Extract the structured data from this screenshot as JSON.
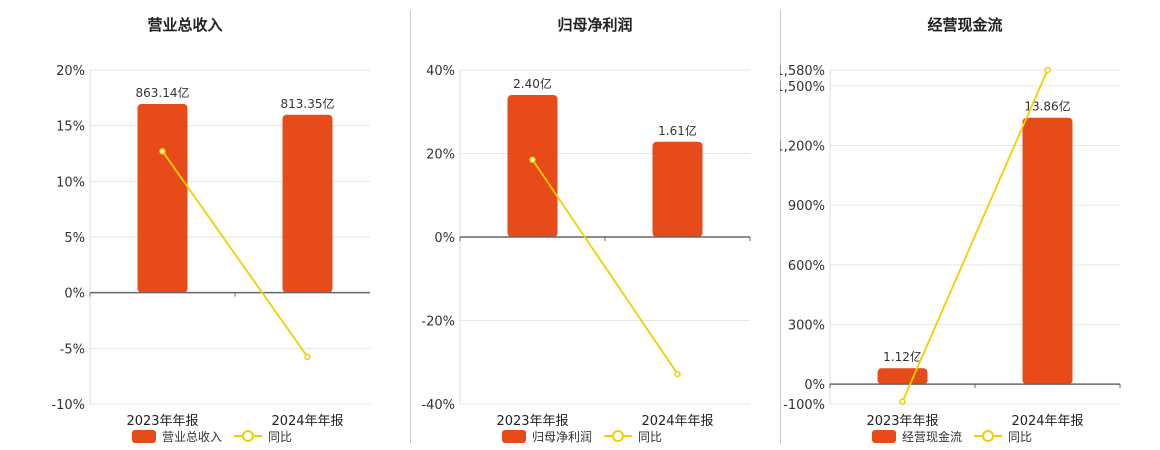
{
  "colors": {
    "bar": "#E84B1A",
    "line": "#F2CF00",
    "grid": "#e6e6e6",
    "axis": "#666666"
  },
  "chart_data": [
    {
      "type": "bar",
      "title": "营业总收入",
      "categories": [
        "2023年年报",
        "2024年年报"
      ],
      "series": [
        {
          "name": "营业总收入",
          "values": [
            16.95,
            15.98
          ],
          "labels": [
            "863.14亿",
            "813.35亿"
          ]
        },
        {
          "name": "同比",
          "type": "line",
          "values": [
            12.7,
            -5.77
          ]
        }
      ],
      "ylim": [
        -10,
        20
      ],
      "yticks": [
        20,
        15,
        10,
        5,
        0,
        -5,
        -10
      ],
      "ytick_labels": [
        "20%",
        "15%",
        "10%",
        "5%",
        "0%",
        "-5%",
        "-10%"
      ],
      "grid": true,
      "legend": "bottom"
    },
    {
      "type": "bar",
      "title": "归母净利润",
      "categories": [
        "2023年年报",
        "2024年年报"
      ],
      "series": [
        {
          "name": "归母净利润",
          "values": [
            34,
            22.8
          ],
          "labels": [
            "2.40亿",
            "1.61亿"
          ]
        },
        {
          "name": "同比",
          "type": "line",
          "values": [
            18.5,
            -32.8
          ]
        }
      ],
      "ylim": [
        -40,
        40
      ],
      "yticks": [
        40,
        20,
        0,
        -20,
        -40
      ],
      "ytick_labels": [
        "40%",
        "20%",
        "0%",
        "-20%",
        "-40%"
      ],
      "grid": true,
      "legend": "bottom"
    },
    {
      "type": "bar",
      "title": "经营现金流",
      "categories": [
        "2023年年报",
        "2024年年报"
      ],
      "series": [
        {
          "name": "经营现金流",
          "values": [
            80,
            1340
          ],
          "labels": [
            "1.12亿",
            "13.86亿"
          ]
        },
        {
          "name": "同比",
          "type": "line",
          "values": [
            -88,
            1580
          ]
        }
      ],
      "ylim": [
        -100,
        1580
      ],
      "yticks": [
        1580,
        1500,
        1200,
        900,
        600,
        300,
        0,
        -100
      ],
      "ytick_labels": [
        "1,580%",
        "1,500%",
        "1,200%",
        "900%",
        "600%",
        "300%",
        "0%",
        "-100%"
      ],
      "grid": true,
      "legend": "bottom"
    }
  ]
}
